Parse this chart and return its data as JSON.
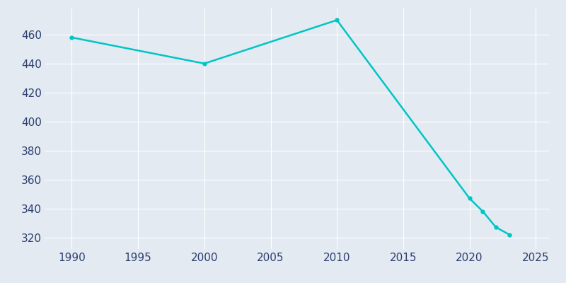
{
  "years": [
    1990,
    2000,
    2010,
    2020,
    2021,
    2022,
    2023
  ],
  "population": [
    458,
    440,
    470,
    347,
    338,
    327,
    322
  ],
  "line_color": "#00C5C5",
  "marker_color": "#00C5C5",
  "bg_color": "#E4EAF2",
  "plot_bg_color": "#E4EAF2",
  "grid_color": "#FFFFFF",
  "tick_color": "#2C3E6E",
  "xlim": [
    1988,
    2026
  ],
  "ylim": [
    312,
    478
  ],
  "xticks": [
    1990,
    1995,
    2000,
    2005,
    2010,
    2015,
    2020,
    2025
  ],
  "yticks": [
    320,
    340,
    360,
    380,
    400,
    420,
    440,
    460
  ]
}
